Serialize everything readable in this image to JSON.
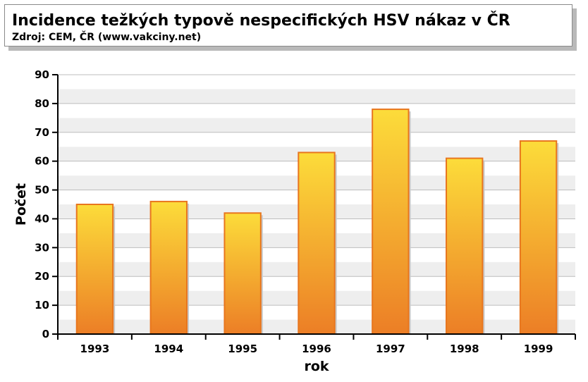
{
  "header": {
    "title": "Incidence težkých typově nespecifických HSV nákaz v ČR",
    "subtitle": "Zdroj: CEM, ČR (www.vakciny.net)"
  },
  "chart_data": {
    "type": "bar",
    "title": "Incidence težkých typově nespecifických HSV nákaz v ČR",
    "subtitle": "Zdroj: CEM, ČR (www.vakciny.net)",
    "xlabel": "rok",
    "ylabel": "Počet",
    "categories": [
      "1993",
      "1994",
      "1995",
      "1996",
      "1997",
      "1998",
      "1999"
    ],
    "values": [
      45,
      46,
      42,
      63,
      78,
      61,
      67
    ],
    "ylim": [
      0,
      90
    ],
    "yticks": [
      0,
      10,
      20,
      30,
      40,
      50,
      60,
      70,
      80,
      90
    ],
    "grid": true,
    "legend": "none",
    "colors": {
      "bar_top": "#fcdc3a",
      "bar_bottom": "#ec7e26",
      "bar_stroke": "#e8761e",
      "band_light": "#ffffff",
      "band_dark": "#eeeeee",
      "grid_line": "#bdbdbd"
    }
  }
}
